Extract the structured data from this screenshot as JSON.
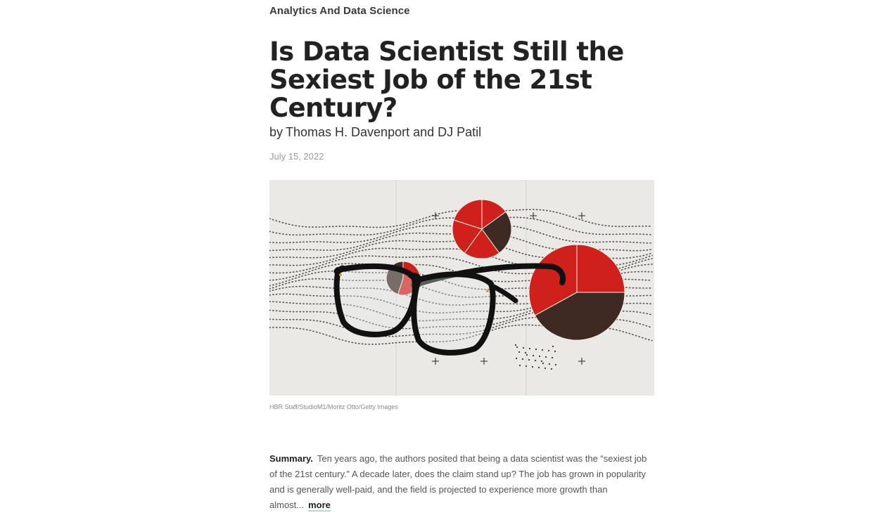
{
  "article": {
    "topic": "Analytics And Data Science",
    "title": "Is Data Scientist Still the Sexiest Job of the 21st Century?",
    "byline_prefix": "by",
    "authors": "Thomas H. Davenport and DJ Patil",
    "date": "July 15, 2022",
    "image_credit": "HBR Staff/StudioM1/Moritz Otto/Getty Images",
    "summary_label": "Summary.",
    "summary_text": "Ten years ago, the authors posited that being a data scientist was the “sexiest job of the 21st century.” A decade later, does the claim stand up? The job has grown in popularity and is generally well-paid, and the field is projected to experience more growth than almost...",
    "more_label": "more"
  },
  "hero_image": {
    "subject": "eyeglasses-with-pie-charts",
    "colors": {
      "background": "#ebe9e6",
      "red": "#d0201c",
      "dark": "#3e2a22",
      "dots": "#2a2a2a",
      "frame": "#111111"
    }
  },
  "colors": {
    "text": "#222222",
    "muted": "#9a9a9a",
    "more_underline": "#b7d8d6"
  }
}
